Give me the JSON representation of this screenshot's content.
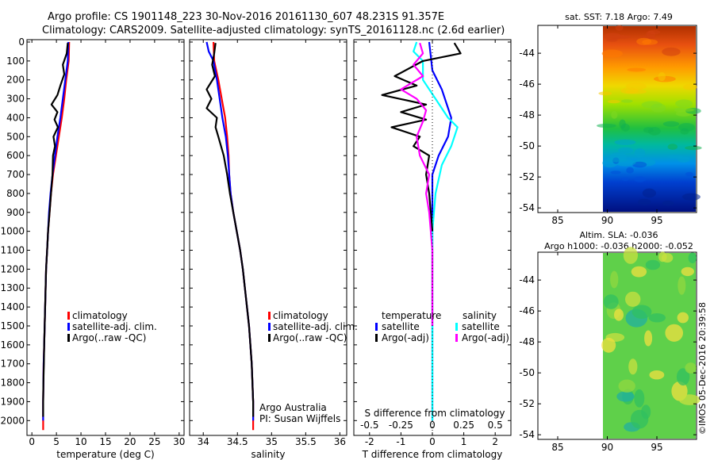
{
  "header": {
    "line1": "Argo profile: CS 1901148_223 30-Nov-2016 20161130_607 48.231S 91.357E",
    "line2": "Climatology: CARS2009. Satellite-adjusted climatology: synTS_20161128.nc (2.6d earlier)"
  },
  "colors": {
    "climatology": "#ff0000",
    "satellite": "#0000ff",
    "argo": "#000000",
    "argo_s": "#ff00ff",
    "satellite_s": "#00ffff"
  },
  "chart_data": [
    {
      "type": "line",
      "id": "temperature",
      "xlabel": "temperature (deg C)",
      "xlim": [
        -1,
        31
      ],
      "ylim": [
        0,
        2070
      ],
      "xticks": [
        "0",
        "5",
        "10",
        "15",
        "20",
        "25",
        "30"
      ],
      "xtick_values": [
        0,
        5,
        10,
        15,
        20,
        25,
        30
      ],
      "yticks": [
        0,
        100,
        200,
        300,
        400,
        500,
        600,
        700,
        800,
        900,
        1000,
        1100,
        1200,
        1300,
        1400,
        1500,
        1600,
        1700,
        1800,
        1900,
        2000
      ],
      "legend": [
        "climatology",
        "satellite-adj. clim.",
        "Argo(..raw -QC)"
      ],
      "series": [
        {
          "name": "climatology",
          "color": "#ff0000",
          "points": [
            [
              7.6,
              0
            ],
            [
              7.5,
              100
            ],
            [
              7.0,
              200
            ],
            [
              6.6,
              300
            ],
            [
              6.1,
              400
            ],
            [
              5.5,
              500
            ],
            [
              4.9,
              600
            ],
            [
              4.3,
              700
            ],
            [
              3.9,
              800
            ],
            [
              3.6,
              900
            ],
            [
              3.3,
              1000
            ],
            [
              3.1,
              1100
            ],
            [
              2.9,
              1200
            ],
            [
              2.8,
              1300
            ],
            [
              2.7,
              1400
            ],
            [
              2.6,
              1500
            ],
            [
              2.5,
              1600
            ],
            [
              2.4,
              1700
            ],
            [
              2.35,
              1800
            ],
            [
              2.3,
              1900
            ],
            [
              2.3,
              2050
            ]
          ]
        },
        {
          "name": "satellite",
          "color": "#0000ff",
          "points": [
            [
              7.4,
              0
            ],
            [
              7.3,
              100
            ],
            [
              6.8,
              200
            ],
            [
              6.3,
              300
            ],
            [
              5.8,
              400
            ],
            [
              5.2,
              500
            ],
            [
              4.7,
              600
            ],
            [
              4.2,
              700
            ],
            [
              3.8,
              800
            ],
            [
              3.5,
              900
            ],
            [
              3.3,
              1000
            ],
            [
              3.1,
              1100
            ],
            [
              2.9,
              1200
            ],
            [
              2.8,
              1300
            ],
            [
              2.7,
              1400
            ],
            [
              2.6,
              1500
            ],
            [
              2.5,
              1600
            ],
            [
              2.4,
              1700
            ],
            [
              2.35,
              1800
            ],
            [
              2.3,
              1900
            ],
            [
              2.3,
              2000
            ]
          ]
        },
        {
          "name": "Argo",
          "color": "#000000",
          "points": [
            [
              7.3,
              5
            ],
            [
              7.1,
              60
            ],
            [
              6.3,
              120
            ],
            [
              6.6,
              170
            ],
            [
              5.8,
              230
            ],
            [
              5.2,
              280
            ],
            [
              4.0,
              330
            ],
            [
              5.2,
              370
            ],
            [
              4.6,
              410
            ],
            [
              5.3,
              450
            ],
            [
              4.4,
              500
            ],
            [
              4.7,
              550
            ],
            [
              4.3,
              600
            ],
            [
              4.2,
              700
            ],
            [
              3.9,
              800
            ],
            [
              3.6,
              900
            ],
            [
              3.3,
              1000
            ],
            [
              3.1,
              1100
            ],
            [
              2.9,
              1200
            ],
            [
              2.8,
              1300
            ],
            [
              2.7,
              1400
            ],
            [
              2.6,
              1500
            ],
            [
              2.5,
              1600
            ],
            [
              2.45,
              1700
            ],
            [
              2.35,
              1800
            ],
            [
              2.3,
              1900
            ],
            [
              2.3,
              1980
            ]
          ]
        }
      ]
    },
    {
      "type": "line",
      "id": "salinity",
      "xlabel": "salinity",
      "xlim": [
        33.8,
        36.1
      ],
      "ylim": [
        0,
        2070
      ],
      "xticks": [
        "34",
        "34.5",
        "35",
        "35.5",
        "36"
      ],
      "xtick_values": [
        34,
        34.5,
        35,
        35.5,
        36
      ],
      "legend": [
        "climatology",
        "satellite-adj. clim.",
        "Argo(..raw -QC)"
      ],
      "annotation": [
        "Argo Australia",
        "PI: Susan Wijffels"
      ],
      "series": [
        {
          "name": "climatology",
          "color": "#ff0000",
          "points": [
            [
              34.15,
              0
            ],
            [
              34.16,
              100
            ],
            [
              34.22,
              200
            ],
            [
              34.27,
              300
            ],
            [
              34.32,
              400
            ],
            [
              34.35,
              500
            ],
            [
              34.37,
              600
            ],
            [
              34.38,
              700
            ],
            [
              34.4,
              800
            ],
            [
              34.44,
              900
            ],
            [
              34.49,
              1000
            ],
            [
              34.54,
              1100
            ],
            [
              34.58,
              1200
            ],
            [
              34.61,
              1300
            ],
            [
              34.64,
              1400
            ],
            [
              34.67,
              1500
            ],
            [
              34.69,
              1600
            ],
            [
              34.71,
              1700
            ],
            [
              34.72,
              1800
            ],
            [
              34.73,
              1900
            ],
            [
              34.73,
              2050
            ]
          ]
        },
        {
          "name": "satellite",
          "color": "#0000ff",
          "points": [
            [
              34.05,
              0
            ],
            [
              34.08,
              50
            ],
            [
              34.15,
              100
            ],
            [
              34.2,
              200
            ],
            [
              34.24,
              300
            ],
            [
              34.28,
              400
            ],
            [
              34.33,
              500
            ],
            [
              34.36,
              600
            ],
            [
              34.38,
              700
            ],
            [
              34.4,
              800
            ],
            [
              34.44,
              900
            ],
            [
              34.49,
              1000
            ],
            [
              34.54,
              1100
            ],
            [
              34.58,
              1200
            ],
            [
              34.61,
              1300
            ],
            [
              34.64,
              1400
            ],
            [
              34.67,
              1500
            ],
            [
              34.69,
              1600
            ],
            [
              34.71,
              1700
            ],
            [
              34.72,
              1800
            ],
            [
              34.73,
              1900
            ],
            [
              34.73,
              2000
            ]
          ]
        },
        {
          "name": "Argo",
          "color": "#000000",
          "points": [
            [
              34.18,
              5
            ],
            [
              34.16,
              60
            ],
            [
              34.13,
              120
            ],
            [
              34.17,
              180
            ],
            [
              34.05,
              250
            ],
            [
              34.12,
              300
            ],
            [
              34.05,
              350
            ],
            [
              34.2,
              400
            ],
            [
              34.18,
              450
            ],
            [
              34.22,
              500
            ],
            [
              34.3,
              600
            ],
            [
              34.35,
              700
            ],
            [
              34.39,
              800
            ],
            [
              34.44,
              900
            ],
            [
              34.49,
              1000
            ],
            [
              34.54,
              1100
            ],
            [
              34.58,
              1200
            ],
            [
              34.61,
              1300
            ],
            [
              34.64,
              1400
            ],
            [
              34.67,
              1500
            ],
            [
              34.69,
              1600
            ],
            [
              34.71,
              1700
            ],
            [
              34.72,
              1800
            ],
            [
              34.73,
              1900
            ],
            [
              34.73,
              1980
            ]
          ]
        }
      ]
    },
    {
      "type": "line",
      "id": "difference",
      "xlabel": "T difference from climatology",
      "xlabel_top": "S difference from climatology",
      "xlim": [
        -2.5,
        2.5
      ],
      "ylim": [
        0,
        2070
      ],
      "xticks": [
        "-2",
        "-1",
        "0",
        "1",
        "2"
      ],
      "xtick_values": [
        -2,
        -1,
        0,
        1,
        2
      ],
      "xticks_top": [
        "-0.5",
        "-0.25",
        "0",
        "0.25",
        "0.5"
      ],
      "xtick_top_values": [
        -2,
        -1,
        0,
        1,
        2
      ],
      "legend_headers": [
        "temperature",
        "salinity"
      ],
      "legend_t": [
        "satellite",
        "Argo(-adj)"
      ],
      "legend_s": [
        "satellite",
        "Argo(-adj)"
      ],
      "series": [
        {
          "name": "T satellite",
          "color": "#0000ff",
          "points": [
            [
              -0.1,
              0
            ],
            [
              0.0,
              150
            ],
            [
              0.3,
              250
            ],
            [
              0.6,
              400
            ],
            [
              0.5,
              500
            ],
            [
              0.2,
              600
            ],
            [
              0.0,
              700
            ],
            [
              0.0,
              900
            ],
            [
              0.0,
              2000
            ]
          ]
        },
        {
          "name": "S satellite",
          "color": "#00ffff",
          "points": [
            [
              -0.5,
              0
            ],
            [
              -0.6,
              50
            ],
            [
              -0.3,
              100
            ],
            [
              -0.3,
              200
            ],
            [
              0.1,
              300
            ],
            [
              0.5,
              400
            ],
            [
              0.8,
              450
            ],
            [
              0.6,
              550
            ],
            [
              0.3,
              650
            ],
            [
              0.1,
              800
            ],
            [
              0.0,
              1000
            ],
            [
              0.0,
              2000
            ]
          ]
        },
        {
          "name": "T Argo",
          "color": "#000000",
          "points": [
            [
              0.7,
              5
            ],
            [
              0.9,
              60
            ],
            [
              -0.3,
              100
            ],
            [
              -1.2,
              180
            ],
            [
              -0.5,
              230
            ],
            [
              -1.6,
              280
            ],
            [
              -0.2,
              330
            ],
            [
              -1.0,
              370
            ],
            [
              -0.2,
              410
            ],
            [
              -1.3,
              450
            ],
            [
              -0.4,
              500
            ],
            [
              -0.6,
              550
            ],
            [
              -0.1,
              600
            ],
            [
              -0.2,
              700
            ],
            [
              -0.1,
              800
            ],
            [
              0.0,
              1000
            ]
          ]
        },
        {
          "name": "S Argo",
          "color": "#ff00ff",
          "points": [
            [
              -0.4,
              5
            ],
            [
              -0.3,
              60
            ],
            [
              -0.6,
              120
            ],
            [
              -0.3,
              180
            ],
            [
              -1.0,
              250
            ],
            [
              -0.5,
              300
            ],
            [
              -0.2,
              360
            ],
            [
              -0.3,
              420
            ],
            [
              -0.5,
              500
            ],
            [
              -0.4,
              600
            ],
            [
              -0.1,
              700
            ],
            [
              -0.2,
              800
            ],
            [
              -0.1,
              900
            ],
            [
              0.0,
              1100
            ],
            [
              0.0,
              1500
            ]
          ]
        }
      ]
    },
    {
      "type": "heatmap",
      "id": "sst",
      "title": "sat. SST: 7.18 Argo: 7.49",
      "yticks": [
        "-44",
        "-46",
        "-48",
        "-50",
        "-52",
        "-54"
      ],
      "ytick_values": [
        -44,
        -46,
        -48,
        -50,
        -52,
        -54
      ],
      "xticks": [
        "85",
        "90",
        "95"
      ],
      "xtick_values": [
        85,
        90,
        95
      ],
      "xlim": [
        83,
        99
      ],
      "ylim": [
        -54.3,
        -42.2
      ],
      "data_start_lon": 89.9
    },
    {
      "type": "heatmap",
      "id": "sla",
      "title_line1": "Altim. SLA: -0.036",
      "title_line2": "Argo h1000: -0.036 h2000: -0.052",
      "yticks": [
        "-44",
        "-46",
        "-48",
        "-50",
        "-52",
        "-54"
      ],
      "ytick_values": [
        -44,
        -46,
        -48,
        -50,
        -52,
        -54
      ],
      "xticks": [
        "85",
        "90",
        "95"
      ],
      "xtick_values": [
        85,
        90,
        95
      ],
      "xlim": [
        83,
        99
      ],
      "ylim": [
        -54.3,
        -42.2
      ],
      "data_start_lon": 89.9
    }
  ],
  "credit": "©IMOS 05-Dec-2016 20:39:58"
}
